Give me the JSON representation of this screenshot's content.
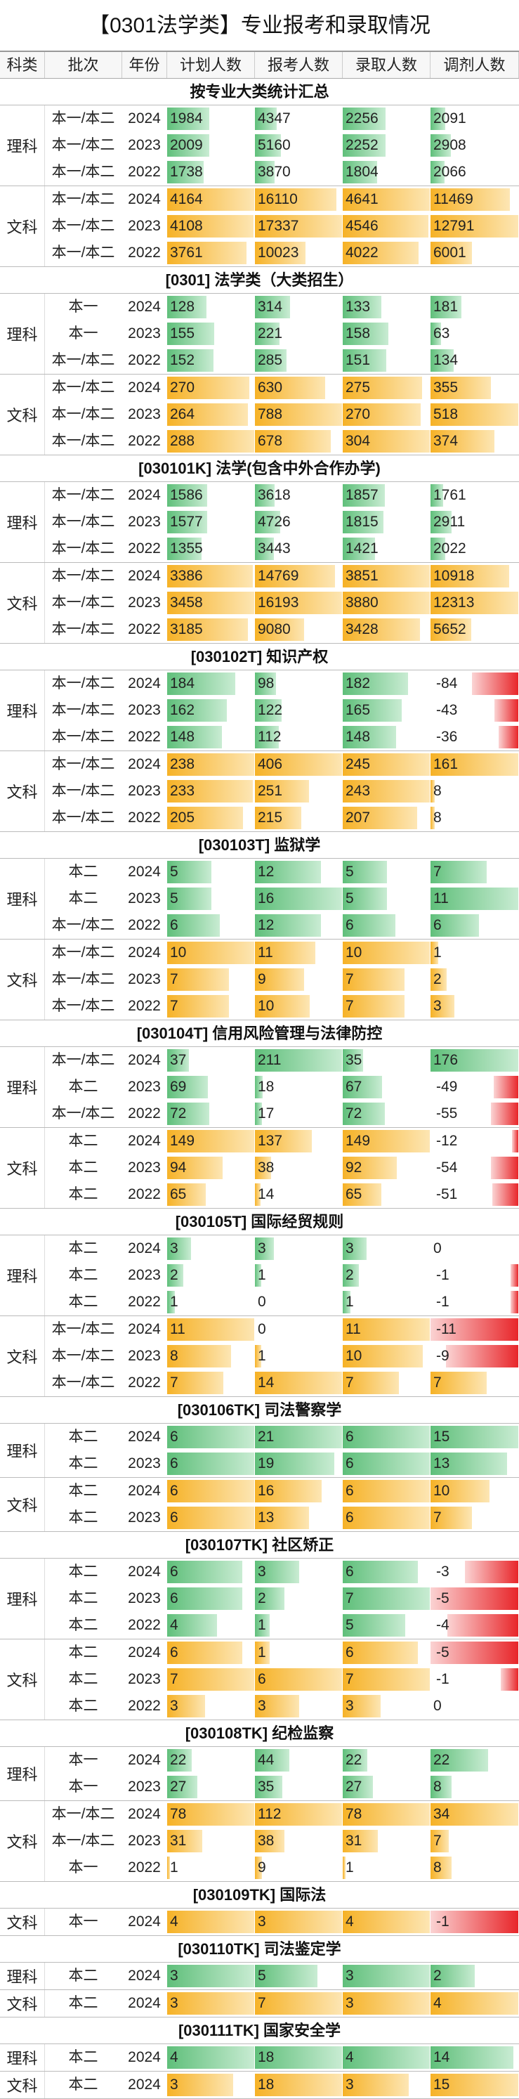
{
  "title": "【0301法学类】专业报考和录取情况",
  "headers": [
    "科类",
    "批次",
    "年份",
    "计划人数",
    "报考人数",
    "录取人数",
    "调剂人数"
  ],
  "colors": {
    "science_bar": "#5fbf7a",
    "arts_bar": "#f6b227",
    "negative_bar": "#e8262a"
  },
  "sections": [
    {
      "title": "按专业大类统计汇总",
      "groups": [
        {
          "label": "理科",
          "color": "green",
          "rows": [
            {
              "pc": "本一/本二",
              "yr": "2024",
              "v": [
                "1984",
                "4347",
                "2256",
                "2091"
              ]
            },
            {
              "pc": "本一/本二",
              "yr": "2023",
              "v": [
                "2009",
                "5160",
                "2252",
                "2908"
              ]
            },
            {
              "pc": "本一/本二",
              "yr": "2022",
              "v": [
                "1738",
                "3870",
                "1804",
                "2066"
              ]
            }
          ]
        },
        {
          "label": "文科",
          "color": "orange",
          "rows": [
            {
              "pc": "本一/本二",
              "yr": "2024",
              "v": [
                "4164",
                "16110",
                "4641",
                "11469"
              ]
            },
            {
              "pc": "本一/本二",
              "yr": "2023",
              "v": [
                "4108",
                "17337",
                "4546",
                "12791"
              ]
            },
            {
              "pc": "本一/本二",
              "yr": "2022",
              "v": [
                "3761",
                "10023",
                "4022",
                "6001"
              ]
            }
          ]
        }
      ]
    },
    {
      "title": "[0301] 法学类（大类招生）",
      "groups": [
        {
          "label": "理科",
          "color": "green",
          "rows": [
            {
              "pc": "本一",
              "yr": "2024",
              "v": [
                "128",
                "314",
                "133",
                "181"
              ]
            },
            {
              "pc": "本一",
              "yr": "2023",
              "v": [
                "155",
                "221",
                "158",
                "63"
              ]
            },
            {
              "pc": "本一/本二",
              "yr": "2022",
              "v": [
                "152",
                "285",
                "151",
                "134"
              ]
            }
          ]
        },
        {
          "label": "文科",
          "color": "orange",
          "rows": [
            {
              "pc": "本一/本二",
              "yr": "2024",
              "v": [
                "270",
                "630",
                "275",
                "355"
              ]
            },
            {
              "pc": "本一/本二",
              "yr": "2023",
              "v": [
                "264",
                "788",
                "270",
                "518"
              ]
            },
            {
              "pc": "本一/本二",
              "yr": "2022",
              "v": [
                "288",
                "678",
                "304",
                "374"
              ]
            }
          ]
        }
      ]
    },
    {
      "title": "[030101K] 法学(包含中外合作办学)",
      "groups": [
        {
          "label": "理科",
          "color": "green",
          "rows": [
            {
              "pc": "本一/本二",
              "yr": "2024",
              "v": [
                "1586",
                "3618",
                "1857",
                "1761"
              ]
            },
            {
              "pc": "本一/本二",
              "yr": "2023",
              "v": [
                "1577",
                "4726",
                "1815",
                "2911"
              ]
            },
            {
              "pc": "本一/本二",
              "yr": "2022",
              "v": [
                "1355",
                "3443",
                "1421",
                "2022"
              ]
            }
          ]
        },
        {
          "label": "文科",
          "color": "orange",
          "rows": [
            {
              "pc": "本一/本二",
              "yr": "2024",
              "v": [
                "3386",
                "14769",
                "3851",
                "10918"
              ]
            },
            {
              "pc": "本一/本二",
              "yr": "2023",
              "v": [
                "3458",
                "16193",
                "3880",
                "12313"
              ]
            },
            {
              "pc": "本一/本二",
              "yr": "2022",
              "v": [
                "3185",
                "9080",
                "3428",
                "5652"
              ]
            }
          ]
        }
      ]
    },
    {
      "title": "[030102T] 知识产权",
      "groups": [
        {
          "label": "理科",
          "color": "green",
          "rows": [
            {
              "pc": "本一/本二",
              "yr": "2024",
              "v": [
                "184",
                "98",
                "182",
                "-84"
              ]
            },
            {
              "pc": "本一/本二",
              "yr": "2023",
              "v": [
                "162",
                "122",
                "165",
                "-43"
              ]
            },
            {
              "pc": "本一/本二",
              "yr": "2022",
              "v": [
                "148",
                "112",
                "148",
                "-36"
              ]
            }
          ]
        },
        {
          "label": "文科",
          "color": "orange",
          "rows": [
            {
              "pc": "本一/本二",
              "yr": "2024",
              "v": [
                "238",
                "406",
                "245",
                "161"
              ]
            },
            {
              "pc": "本一/本二",
              "yr": "2023",
              "v": [
                "233",
                "251",
                "243",
                "8"
              ]
            },
            {
              "pc": "本一/本二",
              "yr": "2022",
              "v": [
                "205",
                "215",
                "207",
                "8"
              ]
            }
          ]
        }
      ]
    },
    {
      "title": "[030103T] 监狱学",
      "groups": [
        {
          "label": "理科",
          "color": "green",
          "rows": [
            {
              "pc": "本二",
              "yr": "2024",
              "v": [
                "5",
                "12",
                "5",
                "7"
              ]
            },
            {
              "pc": "本二",
              "yr": "2023",
              "v": [
                "5",
                "16",
                "5",
                "11"
              ]
            },
            {
              "pc": "本一/本二",
              "yr": "2022",
              "v": [
                "6",
                "12",
                "6",
                "6"
              ]
            }
          ]
        },
        {
          "label": "文科",
          "color": "orange",
          "rows": [
            {
              "pc": "本一/本二",
              "yr": "2024",
              "v": [
                "10",
                "11",
                "10",
                "1"
              ]
            },
            {
              "pc": "本一/本二",
              "yr": "2023",
              "v": [
                "7",
                "9",
                "7",
                "2"
              ]
            },
            {
              "pc": "本一/本二",
              "yr": "2022",
              "v": [
                "7",
                "10",
                "7",
                "3"
              ]
            }
          ]
        }
      ]
    },
    {
      "title": "[030104T] 信用风险管理与法律防控",
      "groups": [
        {
          "label": "理科",
          "color": "green",
          "rows": [
            {
              "pc": "本一/本二",
              "yr": "2024",
              "v": [
                "37",
                "211",
                "35",
                "176"
              ]
            },
            {
              "pc": "本二",
              "yr": "2023",
              "v": [
                "69",
                "18",
                "67",
                "-49"
              ]
            },
            {
              "pc": "本一/本二",
              "yr": "2022",
              "v": [
                "72",
                "17",
                "72",
                "-55"
              ]
            }
          ]
        },
        {
          "label": "文科",
          "color": "orange",
          "rows": [
            {
              "pc": "本二",
              "yr": "2024",
              "v": [
                "149",
                "137",
                "149",
                "-12"
              ]
            },
            {
              "pc": "本二",
              "yr": "2023",
              "v": [
                "94",
                "38",
                "92",
                "-54"
              ]
            },
            {
              "pc": "本二",
              "yr": "2022",
              "v": [
                "65",
                "14",
                "65",
                "-51"
              ]
            }
          ]
        }
      ]
    },
    {
      "title": "[030105T] 国际经贸规则",
      "groups": [
        {
          "label": "理科",
          "color": "green",
          "rows": [
            {
              "pc": "本二",
              "yr": "2024",
              "v": [
                "3",
                "3",
                "3",
                "0"
              ]
            },
            {
              "pc": "本二",
              "yr": "2023",
              "v": [
                "2",
                "1",
                "2",
                "-1"
              ]
            },
            {
              "pc": "本二",
              "yr": "2022",
              "v": [
                "1",
                "0",
                "1",
                "-1"
              ]
            }
          ]
        },
        {
          "label": "文科",
          "color": "orange",
          "rows": [
            {
              "pc": "本一/本二",
              "yr": "2024",
              "v": [
                "11",
                "0",
                "11",
                "-11"
              ]
            },
            {
              "pc": "本一/本二",
              "yr": "2023",
              "v": [
                "8",
                "1",
                "10",
                "-9"
              ]
            },
            {
              "pc": "本一/本二",
              "yr": "2022",
              "v": [
                "7",
                "14",
                "7",
                "7"
              ]
            }
          ]
        }
      ]
    },
    {
      "title": "[030106TK] 司法警察学",
      "groups": [
        {
          "label": "理科",
          "color": "green",
          "rows": [
            {
              "pc": "本二",
              "yr": "2024",
              "v": [
                "6",
                "21",
                "6",
                "15"
              ]
            },
            {
              "pc": "本二",
              "yr": "2023",
              "v": [
                "6",
                "19",
                "6",
                "13"
              ]
            }
          ]
        },
        {
          "label": "文科",
          "color": "orange",
          "rows": [
            {
              "pc": "本二",
              "yr": "2024",
              "v": [
                "6",
                "16",
                "6",
                "10"
              ]
            },
            {
              "pc": "本二",
              "yr": "2023",
              "v": [
                "6",
                "13",
                "6",
                "7"
              ]
            }
          ]
        }
      ]
    },
    {
      "title": "[030107TK] 社区矫正",
      "groups": [
        {
          "label": "理科",
          "color": "green",
          "rows": [
            {
              "pc": "本二",
              "yr": "2024",
              "v": [
                "6",
                "3",
                "6",
                "-3"
              ]
            },
            {
              "pc": "本二",
              "yr": "2023",
              "v": [
                "6",
                "2",
                "7",
                "-5"
              ]
            },
            {
              "pc": "本二",
              "yr": "2022",
              "v": [
                "4",
                "1",
                "5",
                "-4"
              ]
            }
          ]
        },
        {
          "label": "文科",
          "color": "orange",
          "rows": [
            {
              "pc": "本二",
              "yr": "2024",
              "v": [
                "6",
                "1",
                "6",
                "-5"
              ]
            },
            {
              "pc": "本二",
              "yr": "2023",
              "v": [
                "7",
                "6",
                "7",
                "-1"
              ]
            },
            {
              "pc": "本二",
              "yr": "2022",
              "v": [
                "3",
                "3",
                "3",
                "0"
              ]
            }
          ]
        }
      ]
    },
    {
      "title": "[030108TK] 纪检监察",
      "groups": [
        {
          "label": "理科",
          "color": "green",
          "rows": [
            {
              "pc": "本一",
              "yr": "2024",
              "v": [
                "22",
                "44",
                "22",
                "22"
              ]
            },
            {
              "pc": "本一",
              "yr": "2023",
              "v": [
                "27",
                "35",
                "27",
                "8"
              ]
            }
          ]
        },
        {
          "label": "文科",
          "color": "orange",
          "rows": [
            {
              "pc": "本一/本二",
              "yr": "2024",
              "v": [
                "78",
                "112",
                "78",
                "34"
              ]
            },
            {
              "pc": "本一/本二",
              "yr": "2023",
              "v": [
                "31",
                "38",
                "31",
                "7"
              ]
            },
            {
              "pc": "本一",
              "yr": "2022",
              "v": [
                "1",
                "9",
                "1",
                "8"
              ]
            }
          ]
        }
      ]
    },
    {
      "title": "[030109TK] 国际法",
      "groups": [
        {
          "label": "文科",
          "color": "orange",
          "rows": [
            {
              "pc": "本一",
              "yr": "2024",
              "v": [
                "4",
                "3",
                "4",
                "-1"
              ]
            }
          ]
        }
      ]
    },
    {
      "title": "[030110TK] 司法鉴定学",
      "groups": [
        {
          "label": "理科",
          "color": "green",
          "rows": [
            {
              "pc": "本二",
              "yr": "2024",
              "v": [
                "3",
                "5",
                "3",
                "2"
              ]
            }
          ]
        },
        {
          "label": "文科",
          "color": "orange",
          "rows": [
            {
              "pc": "本二",
              "yr": "2024",
              "v": [
                "3",
                "7",
                "3",
                "4"
              ]
            }
          ]
        }
      ]
    },
    {
      "title": "[030111TK] 国家安全学",
      "groups": [
        {
          "label": "理科",
          "color": "green",
          "rows": [
            {
              "pc": "本二",
              "yr": "2024",
              "v": [
                "4",
                "18",
                "4",
                "14"
              ]
            }
          ]
        },
        {
          "label": "文科",
          "color": "orange",
          "rows": [
            {
              "pc": "本二",
              "yr": "2024",
              "v": [
                "3",
                "18",
                "3",
                "15"
              ]
            }
          ]
        }
      ]
    }
  ]
}
